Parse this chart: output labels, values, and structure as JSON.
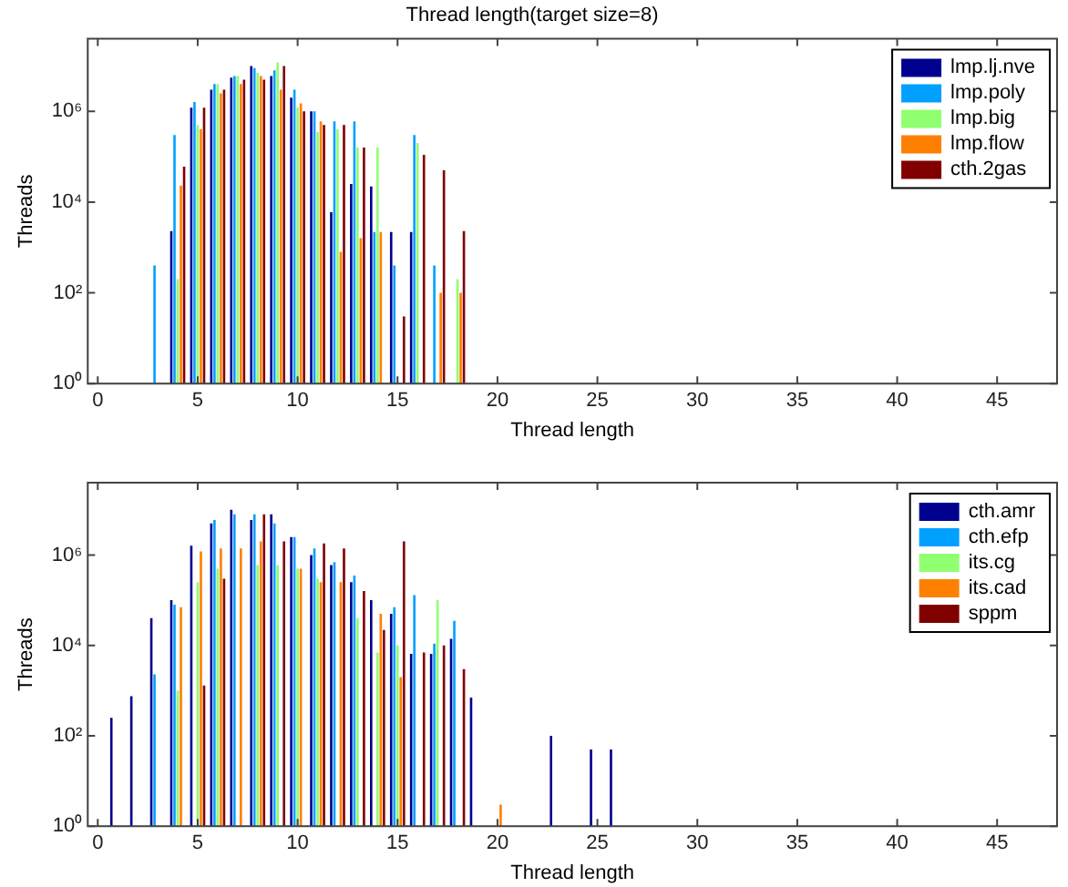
{
  "chart_data": [
    {
      "type": "bar",
      "title": "Thread length(target size=8)",
      "xlabel": "Thread length",
      "ylabel": "Threads",
      "log": true,
      "grid": false,
      "legend": "top right",
      "x": [
        3,
        4,
        5,
        6,
        7,
        8,
        9,
        10,
        11,
        12,
        13,
        14,
        15,
        16,
        17,
        18
      ],
      "xlim": [
        -0.5,
        48
      ],
      "xticks": [
        0,
        5,
        10,
        15,
        20,
        25,
        30,
        35,
        40,
        45
      ],
      "ylim": [
        1,
        40000000
      ],
      "yticks": [
        {
          "value": 1,
          "label": "10⁰"
        },
        {
          "value": 100,
          "label": "10²"
        },
        {
          "value": 10000,
          "label": "10⁴"
        },
        {
          "value": 1000000,
          "label": "10⁶"
        }
      ],
      "series": [
        {
          "name": "lmp.lj.nve",
          "color": "#00008f",
          "values": [
            null,
            2300,
            1200000,
            3000000,
            5500000,
            10000000,
            6000000,
            2000000,
            1000000,
            6000,
            25000,
            22000,
            2200,
            2200,
            null,
            null
          ]
        },
        {
          "name": "lmp.poly",
          "color": "#00a0ff",
          "values": [
            400,
            300000,
            1600000,
            4000000,
            6000000,
            9000000,
            8000000,
            3000000,
            1000000,
            600000,
            600000,
            2200,
            400,
            300000,
            400,
            null
          ]
        },
        {
          "name": "lmp.big",
          "color": "#90ff70",
          "values": [
            null,
            200,
            500000,
            4000000,
            6000000,
            7000000,
            12000000,
            1200000,
            350000,
            400000,
            160000,
            160000,
            null,
            200000,
            null,
            200
          ]
        },
        {
          "name": "lmp.flow",
          "color": "#ff8000",
          "values": [
            null,
            23000,
            400000,
            2500000,
            4000000,
            6000000,
            3000000,
            1500000,
            600000,
            800,
            1600,
            2200,
            null,
            null,
            100,
            100
          ]
        },
        {
          "name": "cth.2gas",
          "color": "#800000",
          "values": [
            null,
            60000,
            1200000,
            3000000,
            5000000,
            5000000,
            10000000,
            1000000,
            500000,
            500000,
            160000,
            null,
            30,
            110000,
            50000,
            2300
          ]
        }
      ]
    },
    {
      "type": "bar",
      "xlabel": "Thread length",
      "ylabel": "Threads",
      "log": true,
      "grid": false,
      "legend": "top right",
      "x": [
        1,
        2,
        3,
        4,
        5,
        6,
        7,
        8,
        9,
        10,
        11,
        12,
        13,
        14,
        15,
        16,
        17,
        18,
        19,
        20,
        23,
        25,
        26
      ],
      "xlim": [
        -0.5,
        48
      ],
      "xticks": [
        0,
        5,
        10,
        15,
        20,
        25,
        30,
        35,
        40,
        45
      ],
      "ylim": [
        1,
        40000000
      ],
      "yticks": [
        {
          "value": 1,
          "label": "10⁰"
        },
        {
          "value": 100,
          "label": "10²"
        },
        {
          "value": 10000,
          "label": "10⁴"
        },
        {
          "value": 1000000,
          "label": "10⁶"
        }
      ],
      "series": [
        {
          "name": "cth.amr",
          "color": "#00008f",
          "values": [
            250,
            750,
            40000,
            100000,
            1600000,
            5000000,
            10000000,
            6000000,
            8000000,
            2500000,
            1000000,
            600000,
            250000,
            100000,
            50000,
            6500,
            6500,
            14000,
            700,
            null,
            100,
            50,
            50
          ]
        },
        {
          "name": "cth.efp",
          "color": "#00a0ff",
          "values": [
            null,
            null,
            2300,
            80000,
            null,
            6000000,
            8000000,
            8000000,
            5000000,
            2500000,
            1400000,
            700000,
            350000,
            null,
            70000,
            130000,
            11000,
            35000,
            null,
            null,
            null,
            null,
            null
          ]
        },
        {
          "name": "its.cg",
          "color": "#90ff70",
          "values": [
            null,
            null,
            null,
            1000,
            250000,
            500000,
            null,
            600000,
            600000,
            500000,
            300000,
            null,
            40000,
            7000,
            10000,
            null,
            100000,
            null,
            null,
            null,
            null,
            null,
            null
          ]
        },
        {
          "name": "its.cad",
          "color": "#ff8000",
          "values": [
            null,
            null,
            null,
            70000,
            1200000,
            1400000,
            1400000,
            2000000,
            null,
            500000,
            250000,
            250000,
            null,
            50000,
            2000,
            null,
            null,
            null,
            null,
            3,
            null,
            null,
            null
          ]
        },
        {
          "name": "sppm",
          "color": "#800000",
          "values": [
            null,
            null,
            null,
            null,
            1300,
            300000,
            null,
            8000000,
            2000000,
            null,
            1800000,
            1400000,
            160000,
            22000,
            2000000,
            7000,
            10000,
            3000,
            null,
            null,
            null,
            null,
            null
          ]
        }
      ]
    }
  ]
}
